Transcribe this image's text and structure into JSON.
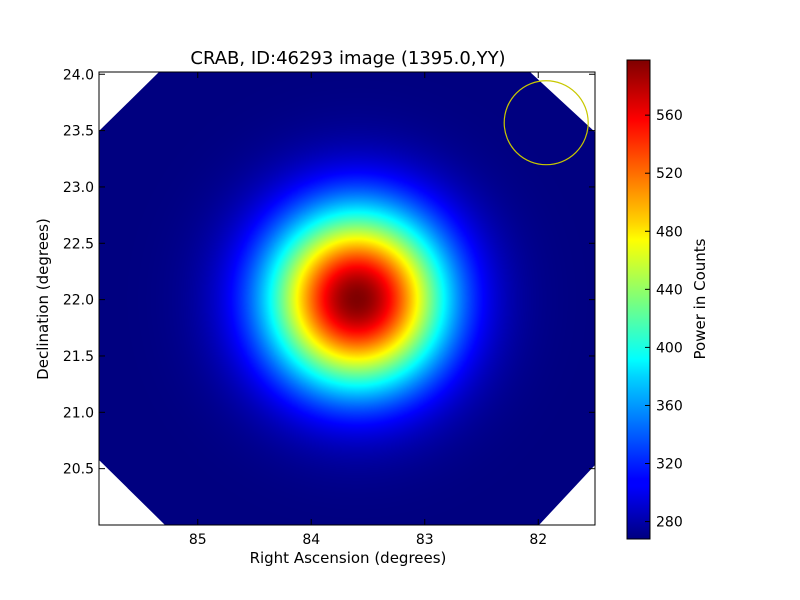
{
  "chart_data": {
    "type": "heatmap",
    "title": "CRAB, ID:46293 image (1395.0,YY)",
    "xlabel": "Right Ascension (degrees)",
    "ylabel": "Declination (degrees)",
    "colorbar_label": "Power in Counts",
    "colormap": "jet",
    "x_inverted": true,
    "xlim": [
      85.87,
      81.5
    ],
    "ylim": [
      20.0,
      24.02
    ],
    "x_ticks": [
      85,
      84,
      83,
      82
    ],
    "x_tick_labels": [
      "85",
      "84",
      "83",
      "82"
    ],
    "y_ticks": [
      20.5,
      21.0,
      21.5,
      22.0,
      22.5,
      23.0,
      23.5,
      24.0
    ],
    "y_tick_labels": [
      "20.5",
      "21.0",
      "21.5",
      "22.0",
      "22.5",
      "23.0",
      "23.5",
      "24.0"
    ],
    "color_range": [
      268,
      598
    ],
    "colorbar_ticks": [
      280,
      320,
      360,
      400,
      440,
      480,
      520,
      560
    ],
    "colorbar_tick_labels": [
      "280",
      "320",
      "360",
      "400",
      "440",
      "480",
      "520",
      "560"
    ],
    "source_peak": {
      "ra": 83.6,
      "dec": 22.01,
      "value": 598
    },
    "background_value": 268,
    "beam_circle": {
      "ra": 81.93,
      "dec": 23.57,
      "radius_deg": 0.37,
      "color": "#c8c800"
    },
    "masked_corners": true
  }
}
